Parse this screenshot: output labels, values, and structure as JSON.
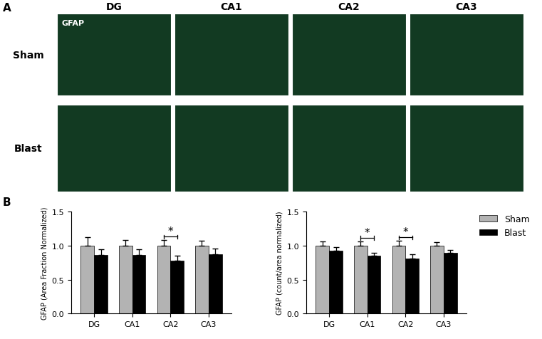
{
  "micrographs": {
    "panel_label": "A",
    "stain": "GFAP",
    "columns": [
      "DG",
      "CA1",
      "CA2",
      "CA3"
    ],
    "rows": [
      "Sham",
      "Blast"
    ]
  },
  "charts_panel_label": "B",
  "chart_data": [
    {
      "type": "bar",
      "y_label": "GFAP (Area Fraction Normalized)",
      "categories": [
        "DG",
        "CA1",
        "CA2",
        "CA3"
      ],
      "series": [
        {
          "name": "Sham",
          "color": "#b3b3b3",
          "values": [
            1.0,
            1.0,
            1.0,
            1.0
          ],
          "errors": [
            0.12,
            0.08,
            0.08,
            0.07
          ]
        },
        {
          "name": "Blast",
          "color": "#000000",
          "values": [
            0.86,
            0.86,
            0.78,
            0.87
          ],
          "errors": [
            0.09,
            0.09,
            0.07,
            0.09
          ]
        }
      ],
      "significance": [
        {
          "category": "CA2",
          "label": "*"
        }
      ],
      "ylim": [
        0,
        1.5
      ],
      "yticks": [
        {
          "value": 0,
          "label": "0.0"
        },
        {
          "value": 0.5,
          "label": "0.5"
        },
        {
          "value": 1.0,
          "label": "1.0"
        },
        {
          "value": 1.5,
          "label": "1.5"
        }
      ]
    },
    {
      "type": "bar",
      "y_label": "GFAP (count/area normalized)",
      "categories": [
        "DG",
        "CA1",
        "CA2",
        "CA3"
      ],
      "series": [
        {
          "name": "Sham",
          "color": "#b3b3b3",
          "values": [
            1.0,
            1.0,
            1.0,
            1.0
          ],
          "errors": [
            0.06,
            0.06,
            0.07,
            0.05
          ]
        },
        {
          "name": "Blast",
          "color": "#000000",
          "values": [
            0.93,
            0.85,
            0.81,
            0.89
          ],
          "errors": [
            0.05,
            0.04,
            0.06,
            0.05
          ]
        }
      ],
      "significance": [
        {
          "category": "CA1",
          "label": "*"
        },
        {
          "category": "CA2",
          "label": "*"
        }
      ],
      "ylim": [
        0,
        1.5
      ],
      "yticks": [
        {
          "value": 0,
          "label": "0.0"
        },
        {
          "value": 0.5,
          "label": "0.5"
        },
        {
          "value": 1.0,
          "label": "1.0"
        },
        {
          "value": 1.5,
          "label": "1.5"
        }
      ],
      "legend": "right"
    }
  ]
}
